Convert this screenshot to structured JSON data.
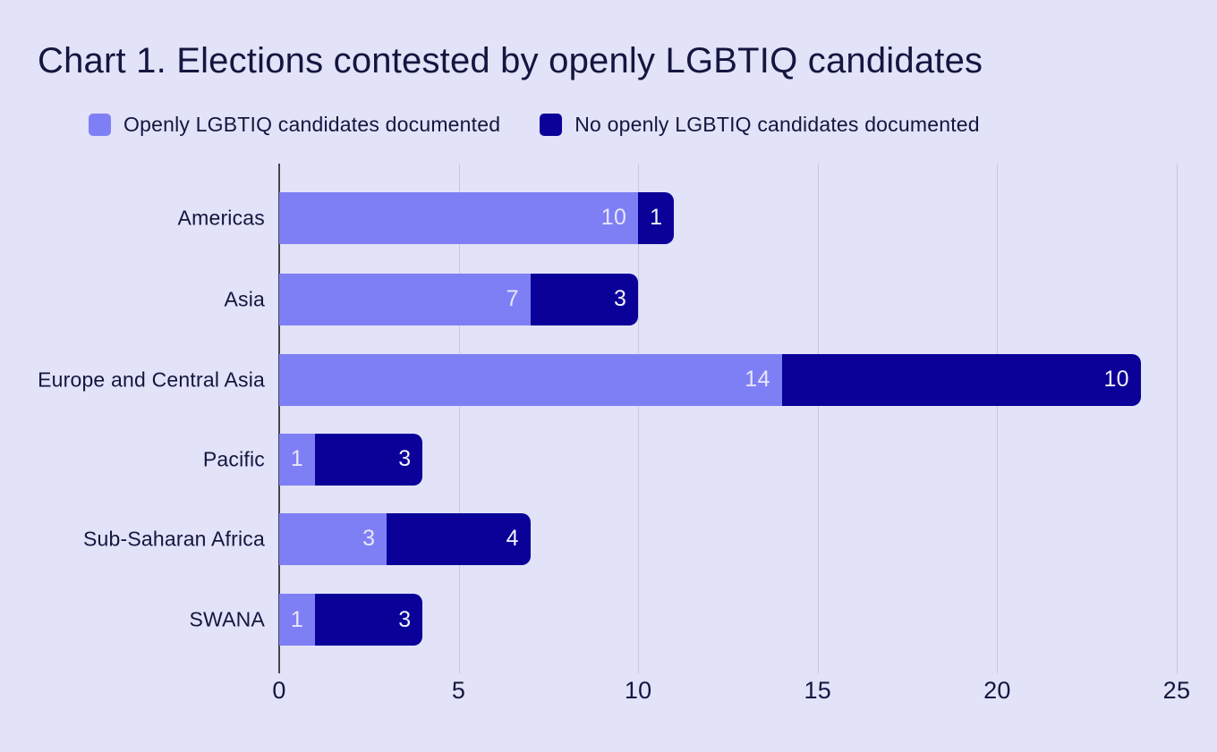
{
  "title": "Chart 1. Elections contested by openly LGBTIQ candidates",
  "chart_data": {
    "type": "bar",
    "orientation": "horizontal",
    "stacked": true,
    "title": "Chart 1. Elections contested by openly LGBTIQ candidates",
    "categories": [
      "Americas",
      "Asia",
      "Europe and Central Asia",
      "Pacific",
      "Sub-Saharan Africa",
      "SWANA"
    ],
    "series": [
      {
        "name": "Openly LGBTIQ candidates documented",
        "color": "#7f7ff5",
        "value_label_color": "#e6e6fa",
        "values": [
          10,
          7,
          14,
          1,
          3,
          1
        ]
      },
      {
        "name": "No openly LGBTIQ candidates documented",
        "color": "#0b0098",
        "value_label_color": "#f2f2fc",
        "values": [
          1,
          3,
          10,
          3,
          4,
          3
        ]
      }
    ],
    "xlabel": "",
    "ylabel": "",
    "xlim": [
      0,
      25
    ],
    "xticks": [
      0,
      5,
      10,
      15,
      20,
      25
    ],
    "grid": true,
    "legend_position": "top-left"
  },
  "colors": {
    "background": "#e2e2f8",
    "text": "#15153f",
    "gridline": "#c9c9da",
    "zero_axis": "#43434f"
  }
}
